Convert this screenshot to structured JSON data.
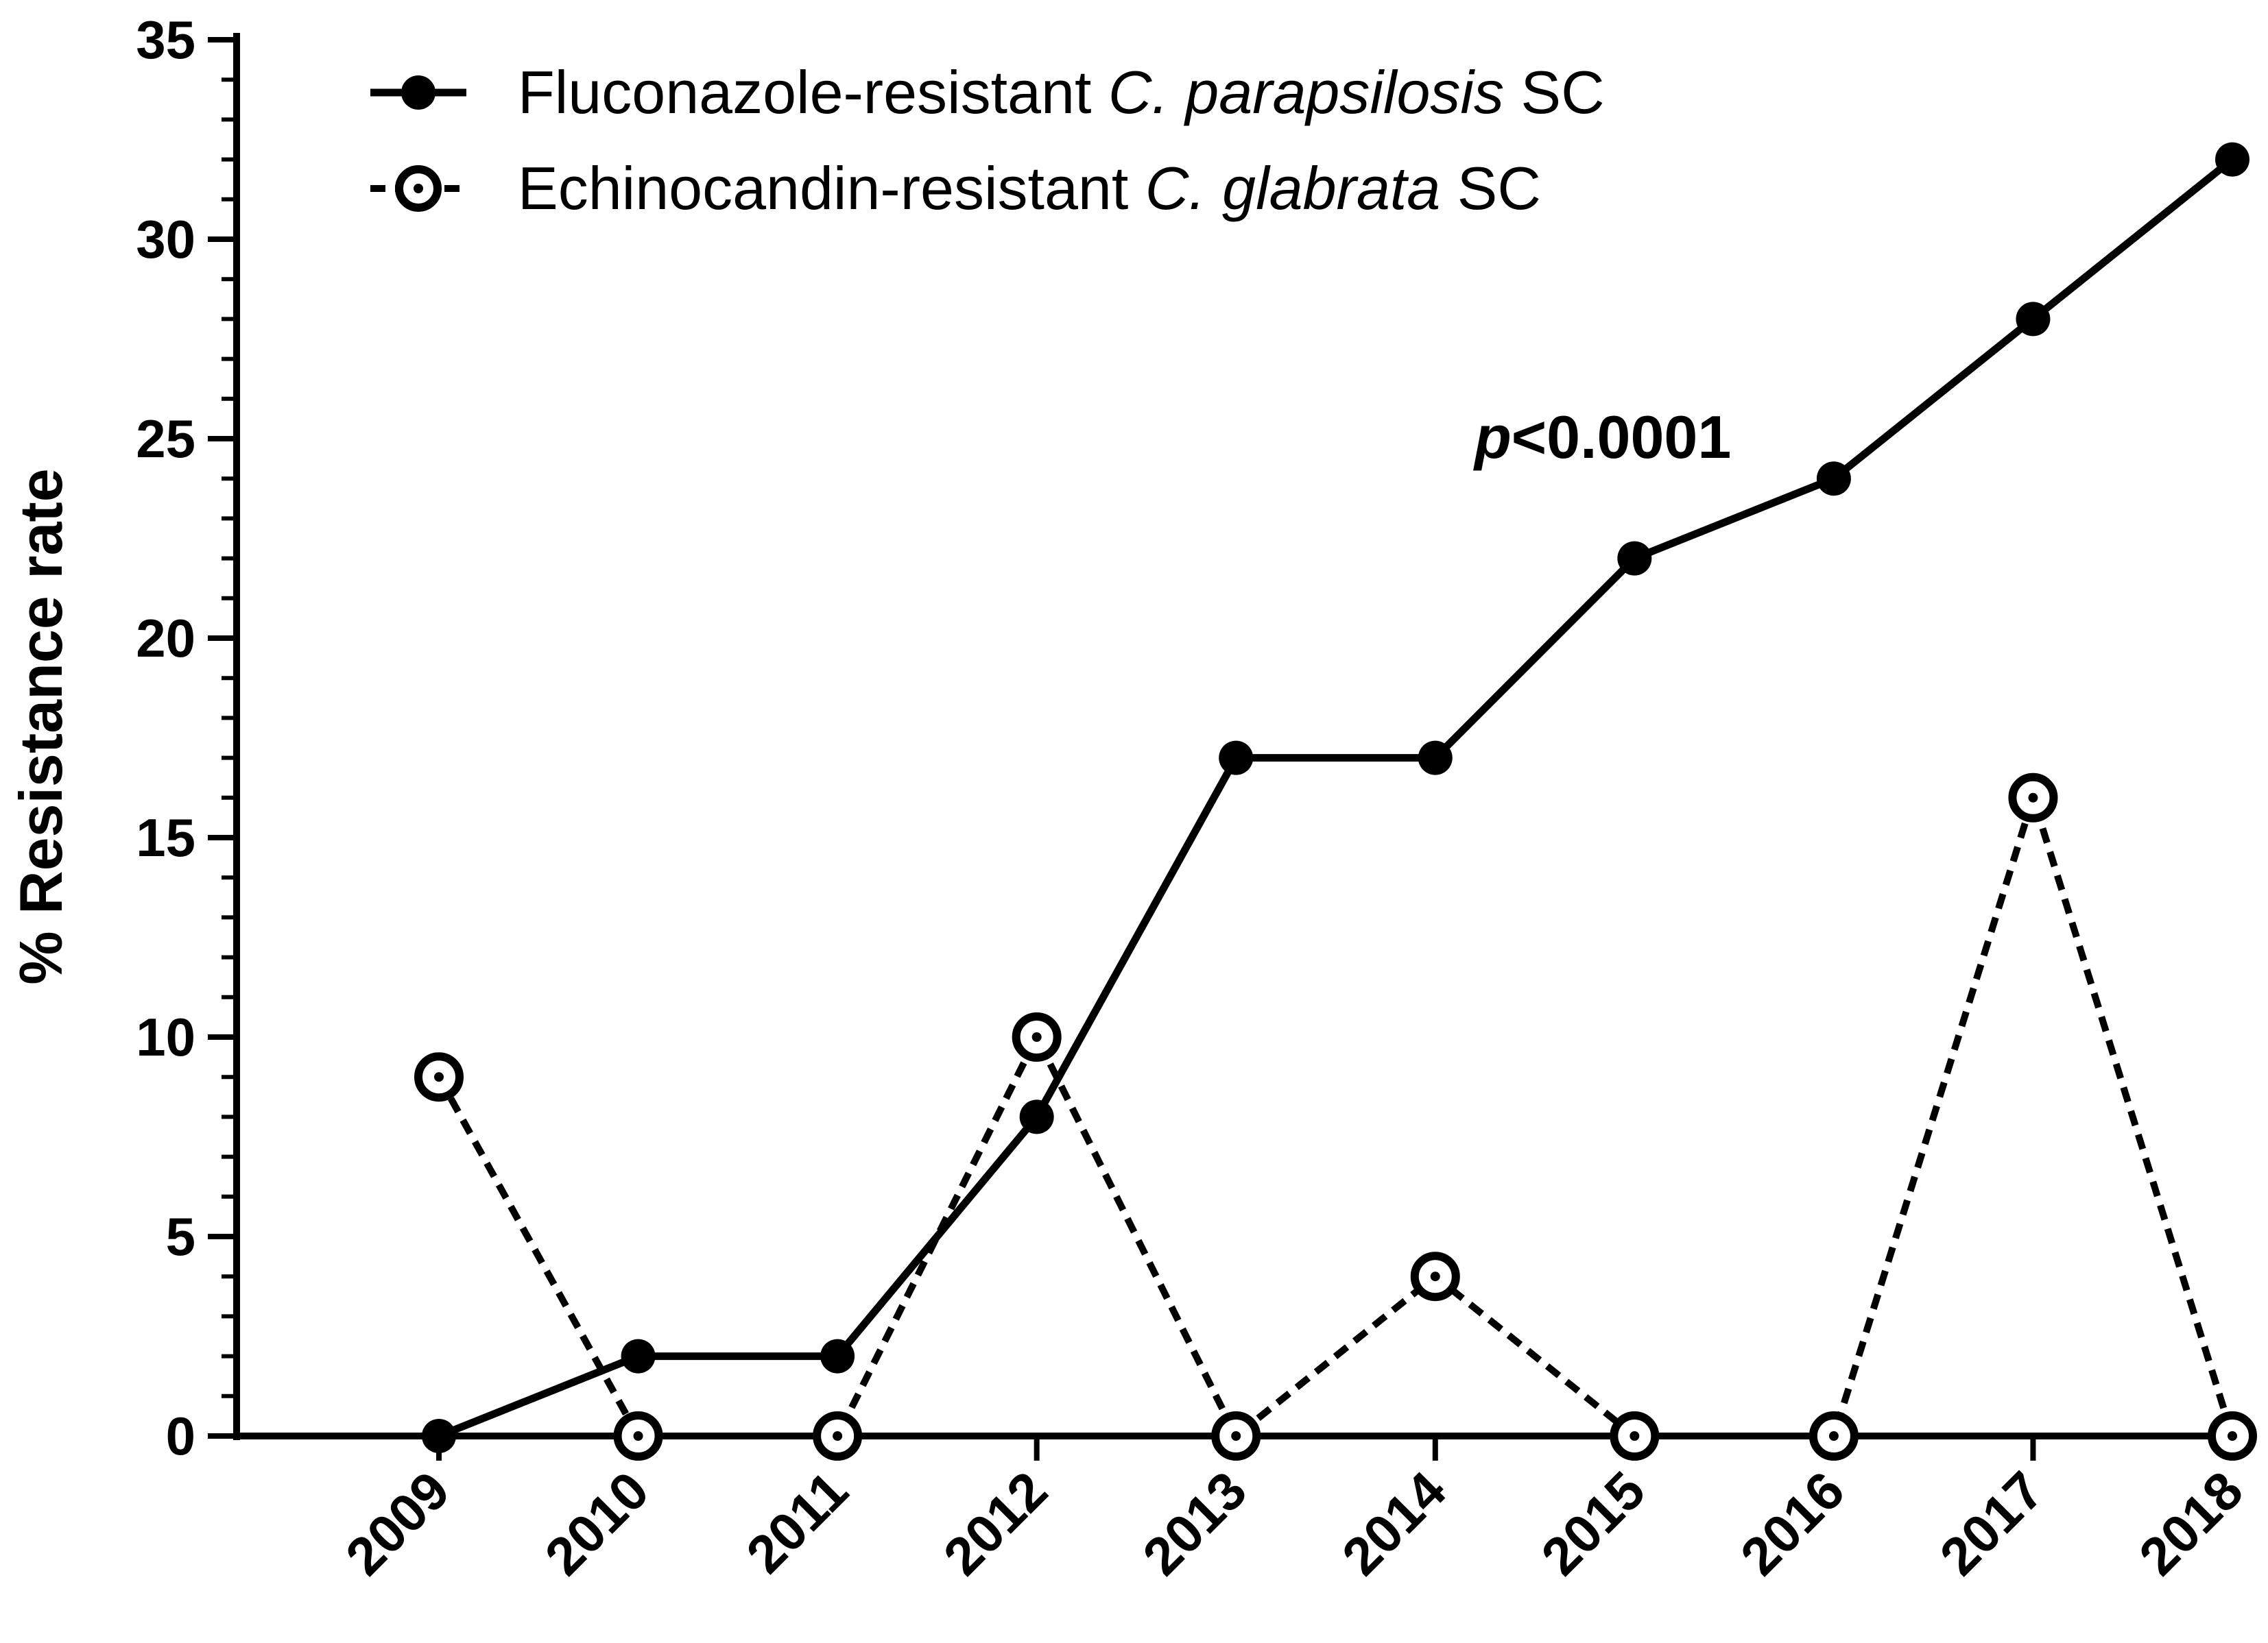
{
  "chart_data": {
    "type": "line",
    "title": "",
    "xlabel": "",
    "ylabel": "% Resistance rate",
    "ylim": [
      0,
      35
    ],
    "yticks": [
      0,
      5,
      10,
      15,
      20,
      25,
      30,
      35
    ],
    "categories": [
      "2009",
      "2010",
      "2011",
      "2012",
      "2013",
      "2014",
      "2015",
      "2016",
      "2017",
      "2018"
    ],
    "grid": false,
    "legend_position": "top-left",
    "series": [
      {
        "name": "Fluconazole-resistant C. parapsilosis SC",
        "name_parts": [
          "Fluconazole-resistant ",
          "C. parapsilosis",
          " SC"
        ],
        "values": [
          0,
          2,
          2,
          8,
          17,
          17,
          22,
          24,
          28,
          32
        ],
        "line_style": "solid",
        "marker": "filled-circle",
        "color": "#000000"
      },
      {
        "name": "Echinocandin-resistant C. glabrata SC",
        "name_parts": [
          "Echinocandin-resistant ",
          "C. glabrata",
          " SC"
        ],
        "values": [
          9,
          0,
          0,
          10,
          0,
          4,
          0,
          0,
          16,
          0
        ],
        "line_style": "dashed",
        "marker": "open-circle-dot",
        "color": "#000000"
      }
    ],
    "annotations": [
      {
        "text_italic": "p",
        "text": "<0.0001",
        "x": "2014.3",
        "y": 25
      }
    ]
  }
}
